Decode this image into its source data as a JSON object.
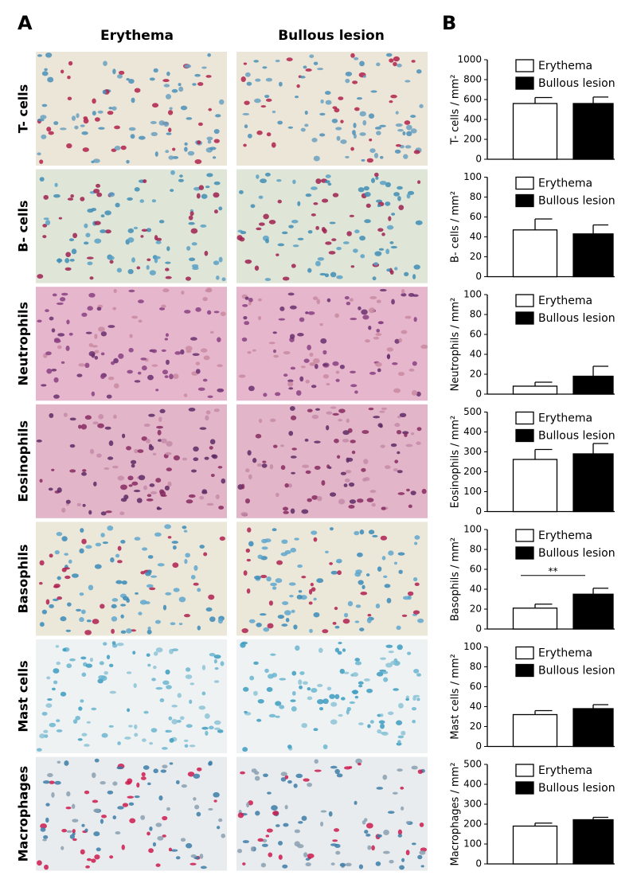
{
  "panel_labels": [
    "A",
    "B"
  ],
  "column_headers": [
    "Erythema",
    "Bullous lesion"
  ],
  "row_labels": [
    "T- cells",
    "B- cells",
    "Neutrophils",
    "Eosinophils",
    "Basophils",
    "Mast cells",
    "Macrophages"
  ],
  "chart_data": [
    {
      "type": "bar",
      "ylabel": "T- cells / mm²",
      "ylim": [
        0,
        1000
      ],
      "yticks": [
        0,
        200,
        400,
        600,
        800,
        1000
      ],
      "series": [
        {
          "name": "Erythema",
          "color": "#ffffff",
          "values": [
            560
          ],
          "errors": [
            60
          ]
        },
        {
          "name": "Bullous lesion",
          "color": "#000000",
          "values": [
            560
          ],
          "errors": [
            65
          ]
        }
      ]
    },
    {
      "type": "bar",
      "ylabel": "B- cells / mm²",
      "ylim": [
        0,
        100
      ],
      "yticks": [
        0,
        20,
        40,
        60,
        80,
        100
      ],
      "series": [
        {
          "name": "Erythema",
          "color": "#ffffff",
          "values": [
            47
          ],
          "errors": [
            11
          ]
        },
        {
          "name": "Bullous lesion",
          "color": "#000000",
          "values": [
            43
          ],
          "errors": [
            9
          ]
        }
      ]
    },
    {
      "type": "bar",
      "ylabel": "Neutrophils / mm²",
      "ylim": [
        0,
        100
      ],
      "yticks": [
        0,
        20,
        40,
        60,
        80,
        100
      ],
      "series": [
        {
          "name": "Erythema",
          "color": "#ffffff",
          "values": [
            8
          ],
          "errors": [
            4
          ]
        },
        {
          "name": "Bullous lesion",
          "color": "#000000",
          "values": [
            18
          ],
          "errors": [
            10
          ]
        }
      ]
    },
    {
      "type": "bar",
      "ylabel": "Eosinophils / mm²",
      "ylim": [
        0,
        500
      ],
      "yticks": [
        0,
        100,
        200,
        300,
        400,
        500
      ],
      "series": [
        {
          "name": "Erythema",
          "color": "#ffffff",
          "values": [
            262
          ],
          "errors": [
            50
          ]
        },
        {
          "name": "Bullous lesion",
          "color": "#000000",
          "values": [
            290
          ],
          "errors": [
            52
          ]
        }
      ]
    },
    {
      "type": "bar",
      "ylabel": "Basophils / mm²",
      "ylim": [
        0,
        100
      ],
      "yticks": [
        0,
        20,
        40,
        60,
        80,
        100
      ],
      "annotation": "**",
      "series": [
        {
          "name": "Erythema",
          "color": "#ffffff",
          "values": [
            21
          ],
          "errors": [
            4
          ]
        },
        {
          "name": "Bullous lesion",
          "color": "#000000",
          "values": [
            35
          ],
          "errors": [
            6
          ]
        }
      ]
    },
    {
      "type": "bar",
      "ylabel": "Mast cells / mm²",
      "ylim": [
        0,
        100
      ],
      "yticks": [
        0,
        20,
        40,
        60,
        80,
        100
      ],
      "series": [
        {
          "name": "Erythema",
          "color": "#ffffff",
          "values": [
            32
          ],
          "errors": [
            4
          ]
        },
        {
          "name": "Bullous lesion",
          "color": "#000000",
          "values": [
            38
          ],
          "errors": [
            4
          ]
        }
      ]
    },
    {
      "type": "bar",
      "ylabel": "Macrophages / mm²",
      "ylim": [
        0,
        500
      ],
      "yticks": [
        0,
        100,
        200,
        300,
        400,
        500
      ],
      "series": [
        {
          "name": "Erythema",
          "color": "#ffffff",
          "values": [
            190
          ],
          "errors": [
            15
          ]
        },
        {
          "name": "Bullous lesion",
          "color": "#000000",
          "values": [
            222
          ],
          "errors": [
            12
          ]
        }
      ]
    }
  ]
}
